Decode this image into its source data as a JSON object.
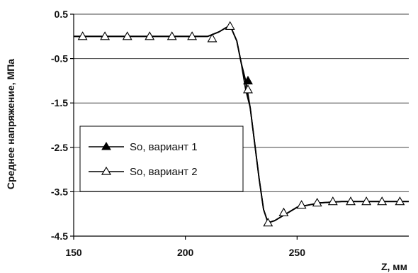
{
  "chart_data": {
    "type": "line",
    "title": "",
    "xlabel": "Z, мм",
    "ylabel": "Среднее напряжение, МПа",
    "xlim": [
      150,
      300
    ],
    "ylim": [
      -4.5,
      0.5
    ],
    "x_ticks": [
      150,
      200,
      250
    ],
    "x_tick_labels": [
      "150",
      "200",
      "250"
    ],
    "y_ticks": [
      0.5,
      -0.5,
      -1.5,
      -2.5,
      -3.5,
      -4.5
    ],
    "y_tick_labels": [
      "0.5",
      "-0.5",
      "-1.5",
      "-2.5",
      "-3.5",
      "-4.5"
    ],
    "grid": "horizontal",
    "legend_position": "middle-left",
    "series": [
      {
        "name": "So, вариант 1",
        "marker": "filled-triangle",
        "color": "#000000",
        "x": [
          150,
          160,
          170,
          180,
          190,
          200,
          210,
          215,
          220,
          223,
          225,
          227,
          229,
          231,
          233,
          235,
          237,
          240,
          245,
          250,
          260,
          270,
          280,
          290,
          300
        ],
        "y": [
          0.0,
          0.0,
          0.0,
          0.0,
          0.0,
          0.0,
          0.0,
          0.1,
          0.25,
          -0.1,
          -0.6,
          -1.0,
          -1.6,
          -2.4,
          -3.2,
          -3.9,
          -4.2,
          -4.15,
          -4.0,
          -3.85,
          -3.75,
          -3.72,
          -3.72,
          -3.72,
          -3.72
        ],
        "markers_x": [
          228
        ],
        "markers_y": [
          -1.0
        ]
      },
      {
        "name": "So, вариант 2",
        "marker": "open-triangle",
        "color": "#000000",
        "x": [
          150,
          160,
          170,
          180,
          190,
          200,
          210,
          215,
          220,
          223,
          225,
          227,
          229,
          231,
          233,
          235,
          237,
          240,
          245,
          250,
          260,
          270,
          280,
          290,
          300
        ],
        "y": [
          0.0,
          0.0,
          0.0,
          0.0,
          0.0,
          0.0,
          0.0,
          0.1,
          0.25,
          -0.1,
          -0.6,
          -1.2,
          -1.6,
          -2.4,
          -3.2,
          -3.9,
          -4.2,
          -4.15,
          -4.0,
          -3.85,
          -3.75,
          -3.72,
          -3.72,
          -3.72,
          -3.72
        ],
        "markers_x": [
          154,
          164,
          174,
          184,
          194,
          203,
          212,
          220,
          228,
          237,
          244,
          252,
          259,
          266,
          274,
          281,
          288,
          296
        ],
        "markers_y": [
          0.0,
          0.0,
          0.0,
          0.0,
          0.0,
          0.0,
          -0.05,
          0.23,
          -1.2,
          -4.2,
          -3.97,
          -3.8,
          -3.75,
          -3.72,
          -3.72,
          -3.72,
          -3.72,
          -3.72
        ]
      }
    ],
    "legend": [
      {
        "label": "So, вариант 1",
        "marker": "filled-triangle"
      },
      {
        "label": "So, вариант 2",
        "marker": "open-triangle"
      }
    ]
  }
}
